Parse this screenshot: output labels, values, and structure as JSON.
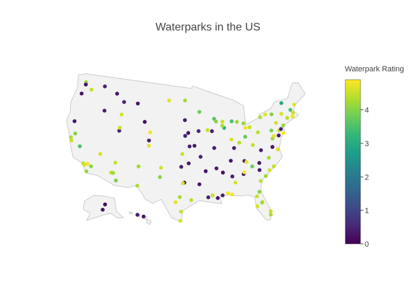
{
  "chart_data": {
    "type": "scattergeo",
    "title": "Waterparks in the US",
    "colorbar_title": "Waterpark Rating",
    "colorscale": "viridis",
    "clim": [
      0,
      4.9
    ],
    "cticks": [
      0,
      1,
      2,
      3,
      4
    ],
    "lon": [
      -122.3,
      -122.6,
      -117.4,
      -122.2,
      -120.5,
      -116.2,
      -114,
      -111.9,
      -112,
      -122.2,
      -121.5,
      -119.8,
      -118.2,
      -117.9,
      -117.2,
      -117.3,
      -116.5,
      -121.9,
      -122.4,
      -115.1,
      -111.9,
      -111.9,
      -112.1,
      -111.7,
      -110.9,
      -111.6,
      -104.9,
      -104.8,
      -106.6,
      -108.5,
      -104.8,
      -106.3,
      -96.7,
      -96,
      -97.3,
      -95.7,
      -98.5,
      -97.7,
      -96.8,
      -97.1,
      -95.4,
      -97.5,
      -95.9,
      -101.8,
      -101.9,
      -96.8,
      -100.8,
      -96.8,
      -93.3,
      -94.6,
      -93.3,
      -92.3,
      -90.2,
      -97.4,
      -97.5,
      -106.4,
      -87.6,
      -88,
      -89.8,
      -89.4,
      -87.9,
      -86.2,
      -84.5,
      -83,
      -81.7,
      -82.7,
      -83,
      -85.7,
      -84.5,
      -91.5,
      -93.6,
      -90.5,
      -85.8,
      -86.8,
      -83.9,
      -83.5,
      -90,
      -86.8,
      -88.7,
      -90.1,
      -91.1,
      -92,
      -93.7,
      -89.1,
      -88,
      -86.3,
      -84.4,
      -84.2,
      -81.1,
      -82.3,
      -81.4,
      -81.5,
      -82.5,
      -80.2,
      -80.1,
      -81.7,
      -87.2,
      -79.9,
      -78.9,
      -81,
      -80.8,
      -82.4,
      -78.6,
      -77.9,
      -77.4,
      -76.3,
      -77,
      -76.6,
      -75.2,
      -74.7,
      -74,
      -73.8,
      -76.1,
      -78.9,
      -77.6,
      -80,
      -76.9,
      -75.5,
      -72.7,
      -71.4,
      -71.1,
      -71.5,
      -70.3,
      -73.2,
      -74.4,
      -75.5,
      -81.6,
      -80,
      -149.9,
      -147.7,
      -157.9,
      -156.5
    ],
    "lat": [
      47.6,
      45.5,
      47.7,
      47.2,
      46.6,
      43.6,
      46.9,
      45.7,
      43.5,
      37.8,
      38.6,
      36.7,
      34,
      33.8,
      32.8,
      34.1,
      33.8,
      37.3,
      40.6,
      36.2,
      40.7,
      41.2,
      33.4,
      33.4,
      32.2,
      35.2,
      39.7,
      38.8,
      35.1,
      45.8,
      41.1,
      42.8,
      40.8,
      41.3,
      37.7,
      39,
      29.4,
      30.3,
      32.8,
      32.7,
      29.8,
      35.5,
      36.1,
      35.2,
      33.6,
      43.5,
      46.8,
      46.9,
      44.9,
      39.1,
      37.2,
      34.7,
      38.6,
      27.8,
      26.2,
      31.8,
      41.9,
      42.3,
      43.6,
      43.1,
      43,
      39.8,
      39.1,
      40,
      41.5,
      41.5,
      42.3,
      42.9,
      42.7,
      41.7,
      41.6,
      41.5,
      38.3,
      36.2,
      35.9,
      35.7,
      35.1,
      33.5,
      34.3,
      30,
      30.5,
      30.2,
      32.5,
      30.4,
      30.7,
      32.4,
      33.7,
      34,
      32.1,
      29.6,
      28.5,
      28.4,
      27.9,
      26.1,
      26.7,
      30.3,
      30.4,
      32.8,
      33.7,
      34,
      35.2,
      34.8,
      35.8,
      34.2,
      37.5,
      36.9,
      38.9,
      39.3,
      40,
      40.2,
      40.7,
      42.7,
      43,
      42.9,
      43.2,
      40.4,
      40.3,
      41.4,
      41.8,
      41.8,
      42.4,
      43,
      43.7,
      44.5,
      39.4,
      39.2,
      38.4,
      37.3,
      61.2,
      64.8,
      21.3,
      20.8
    ],
    "values": [
      4.2,
      0.3,
      0.5,
      0.2,
      4.5,
      0.4,
      0.3,
      0.5,
      4.6,
      4.3,
      4,
      3.5,
      4.4,
      4.6,
      4.1,
      4.8,
      4,
      4.5,
      0.3,
      4.6,
      0.4,
      4.5,
      4.4,
      4.2,
      3.9,
      4.5,
      0.4,
      4.7,
      4.2,
      0.3,
      4.8,
      0.2,
      0.5,
      0.3,
      4.5,
      0.4,
      4.7,
      4.3,
      0.3,
      4.6,
      4.4,
      0.4,
      0.3,
      4.6,
      4,
      0.4,
      4.7,
      4.2,
      3.8,
      0.4,
      0.5,
      0.3,
      0.4,
      4.5,
      4.6,
      4.3,
      3.2,
      4.3,
      3.6,
      4,
      4.5,
      4.6,
      4.4,
      3.7,
      4.5,
      4.8,
      4.1,
      3.5,
      4.2,
      4.5,
      0.5,
      0.4,
      0.4,
      0.3,
      0.4,
      4.7,
      0.3,
      0.4,
      0.2,
      0.3,
      4.5,
      0.4,
      0.3,
      0.4,
      4.8,
      4.6,
      0.4,
      4.9,
      4.4,
      4.5,
      4.7,
      4.2,
      4.6,
      4.3,
      4.5,
      4,
      4.8,
      4.2,
      4.6,
      0.4,
      0.3,
      3.8,
      4.3,
      4.5,
      0.3,
      4.6,
      4.2,
      4.7,
      4.5,
      0.5,
      4.1,
      4.6,
      4,
      4.3,
      4.7,
      4.4,
      3.9,
      4.6,
      4.4,
      4.8,
      4.5,
      3.5,
      4.7,
      2.9,
      4.9,
      0.3,
      4.5,
      0.4,
      0.3,
      0.2,
      0.4,
      0.3
    ]
  }
}
